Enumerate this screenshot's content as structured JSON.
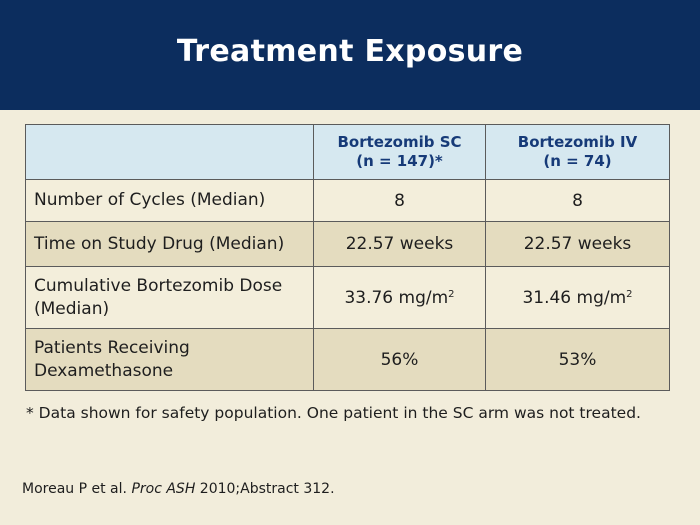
{
  "header": {
    "title": "Treatment Exposure"
  },
  "table": {
    "columns": [
      {
        "name": "Bortezomib SC",
        "n": "(n = 147)*"
      },
      {
        "name": "Bortezomib IV",
        "n": "(n = 74)"
      }
    ],
    "rows": [
      {
        "label": "Number of Cycles (Median)",
        "sc": "8",
        "iv": "8"
      },
      {
        "label": "Time on Study Drug (Median)",
        "sc": "22.57 weeks",
        "iv": "22.57 weeks"
      },
      {
        "label_line1": "Cumulative Bortezomib Dose",
        "label_line2": "(Median)",
        "sc": "33.76 mg/m",
        "iv": "31.46 mg/m",
        "unit_exponent": "2"
      },
      {
        "label_line1": "Patients Receiving",
        "label_line2": "Dexamethasone",
        "sc": "56%",
        "iv": "53%"
      }
    ]
  },
  "footnote": "* Data shown for safety population. One patient in the SC arm was not treated.",
  "citation": {
    "authors": "Moreau P et al.",
    "journal": "Proc ASH",
    "detail": "2010;Abstract 312."
  }
}
